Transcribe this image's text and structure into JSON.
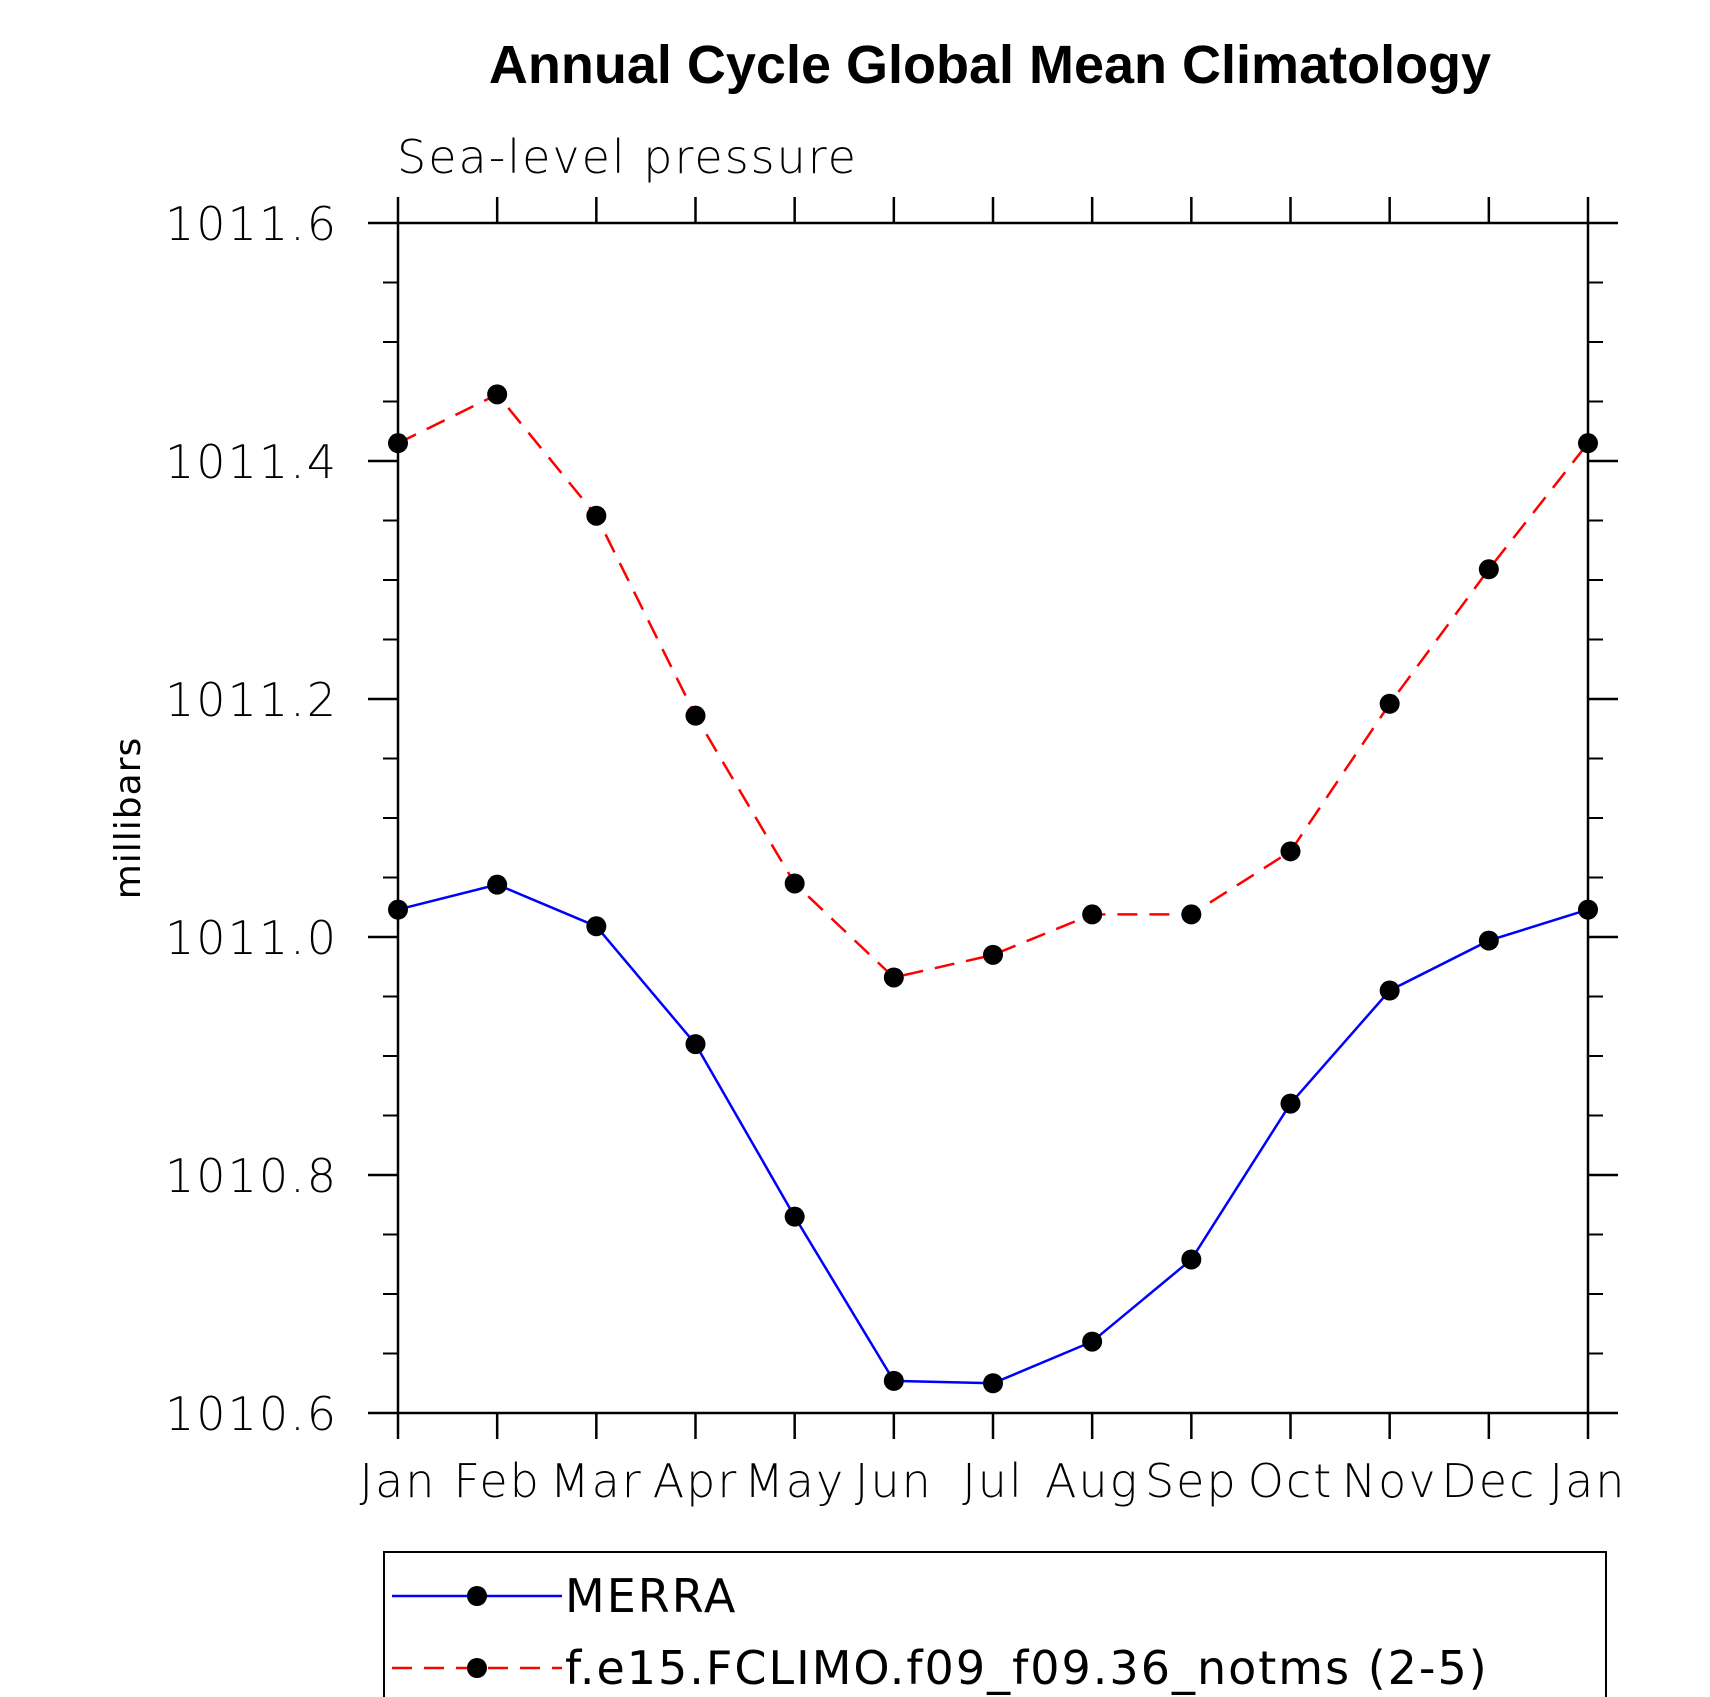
{
  "chart_data": {
    "type": "line",
    "title": "Annual Cycle Global Mean Climatology",
    "subtitle": "Sea-level pressure",
    "xlabel": "",
    "ylabel": "millibars",
    "categories": [
      "Jan",
      "Feb",
      "Mar",
      "Apr",
      "May",
      "Jun",
      "Jul",
      "Aug",
      "Sep",
      "Oct",
      "Nov",
      "Dec",
      "Jan"
    ],
    "ylim": [
      1010.6,
      1011.6
    ],
    "yticks": [
      "1010.6",
      "1010.8",
      "1011.0",
      "1011.2",
      "1011.4",
      "1011.6"
    ],
    "ytick_values": [
      1010.6,
      1010.8,
      1011.0,
      1011.2,
      1011.4,
      1011.6
    ],
    "minor_tick_step": 0.05,
    "grid": false,
    "legend_position": "bottom",
    "series": [
      {
        "name": "MERRA",
        "color": "#0000ff",
        "dash": "solid",
        "marker": "circle",
        "values": [
          1011.023,
          1011.044,
          1011.009,
          1010.91,
          1010.765,
          1010.627,
          1010.625,
          1010.66,
          1010.729,
          1010.86,
          1010.955,
          1010.997,
          1011.023
        ]
      },
      {
        "name": "f.e15.FCLIMO.f09_f09.36_notms (2-5)",
        "color": "#ff0000",
        "dash": "dashed",
        "marker": "circle",
        "values": [
          1011.415,
          1011.456,
          1011.354,
          1011.186,
          1011.045,
          1010.966,
          1010.985,
          1011.019,
          1011.019,
          1011.072,
          1011.196,
          1011.309,
          1011.415
        ]
      }
    ]
  }
}
